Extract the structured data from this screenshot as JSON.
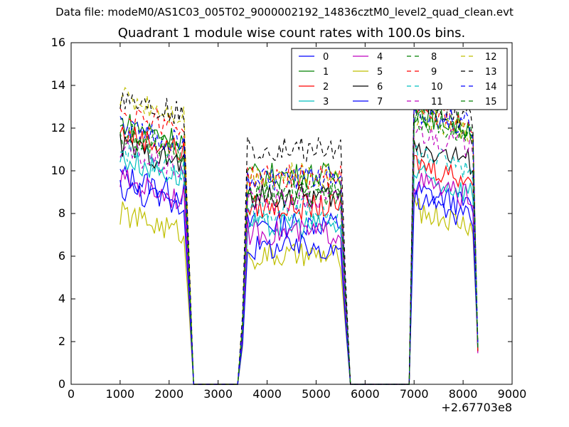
{
  "figure": {
    "suptitle": "Data file: modeM0/AS1C03_005T02_9000002192_14836cztM0_level2_quad_clean.evt"
  },
  "colors": {
    "0": "#0000ff",
    "1": "#008000",
    "2": "#ff0000",
    "3": "#00bfbf",
    "4": "#bf00bf",
    "5": "#bfbf00",
    "6": "#000000",
    "7": "#0000ff",
    "8": "#008000",
    "9": "#ff0000",
    "10": "#00bfbf",
    "11": "#bf00bf",
    "12": "#bfbf00",
    "13": "#000000",
    "14": "#0000ff",
    "15": "#008000"
  },
  "chart_data": {
    "type": "line",
    "title": "Quadrant 1 module wise count rates with 100.0s bins.",
    "xlabel": "",
    "ylabel": "",
    "x_offset_label": "+2.67703e8",
    "xlim": [
      0,
      9000
    ],
    "ylim": [
      0,
      16
    ],
    "xticks": [
      0,
      1000,
      2000,
      3000,
      4000,
      5000,
      6000,
      7000,
      8000,
      9000
    ],
    "yticks": [
      0,
      2,
      4,
      6,
      8,
      10,
      12,
      14,
      16
    ],
    "legend_position": "top-right",
    "legend_columns": 4,
    "segments": [
      {
        "start": 1000,
        "end": 2300,
        "ramp_end": 2500
      },
      {
        "ramp_start": 3400,
        "start": 3600,
        "end": 5500,
        "ramp_end": 5700
      },
      {
        "ramp_start": 6900,
        "start": 7000,
        "end": 8200,
        "ramp_end": 8300
      }
    ],
    "series": [
      {
        "name": "0",
        "style": "solid",
        "levels": [
          9.2,
          7.5,
          8.5
        ]
      },
      {
        "name": "1",
        "style": "solid",
        "levels": [
          11.7,
          9.8,
          12.2
        ]
      },
      {
        "name": "2",
        "style": "solid",
        "levels": [
          11.2,
          8.3,
          9.8
        ]
      },
      {
        "name": "3",
        "style": "solid",
        "levels": [
          10.0,
          7.4,
          9.2
        ]
      },
      {
        "name": "4",
        "style": "solid",
        "levels": [
          9.0,
          7.1,
          8.9
        ]
      },
      {
        "name": "5",
        "style": "solid",
        "levels": [
          7.4,
          6.0,
          7.6
        ]
      },
      {
        "name": "6",
        "style": "solid",
        "levels": [
          10.6,
          8.8,
          10.6
        ]
      },
      {
        "name": "7",
        "style": "solid",
        "levels": [
          8.6,
          6.4,
          8.0
        ]
      },
      {
        "name": "8",
        "style": "dashed",
        "levels": [
          11.0,
          9.2,
          12.0
        ]
      },
      {
        "name": "9",
        "style": "dashed",
        "levels": [
          12.3,
          9.7,
          12.4
        ]
      },
      {
        "name": "10",
        "style": "dashed",
        "levels": [
          10.4,
          8.1,
          10.2
        ]
      },
      {
        "name": "11",
        "style": "dashed",
        "levels": [
          10.3,
          8.6,
          11.3
        ]
      },
      {
        "name": "12",
        "style": "dashed",
        "levels": [
          12.9,
          9.8,
          12.0
        ]
      },
      {
        "name": "13",
        "style": "dashed",
        "levels": [
          12.9,
          11.0,
          12.6
        ]
      },
      {
        "name": "14",
        "style": "dashed",
        "levels": [
          11.5,
          9.6,
          12.3
        ]
      },
      {
        "name": "15",
        "style": "dashed",
        "levels": [
          11.2,
          8.9,
          11.8
        ]
      }
    ]
  }
}
